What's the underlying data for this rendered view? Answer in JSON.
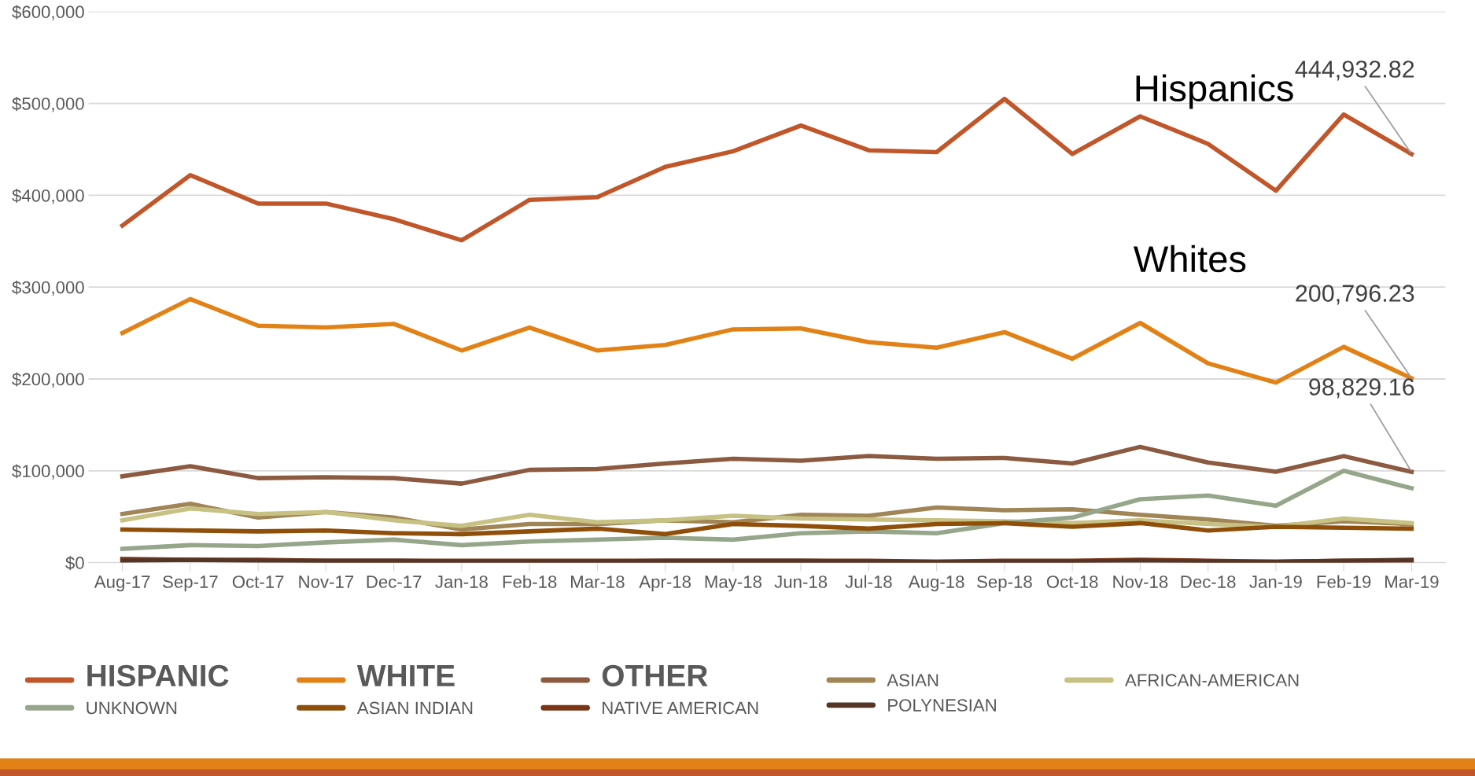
{
  "chart_data": {
    "type": "line",
    "categories": [
      "Aug-17",
      "Sep-17",
      "Oct-17",
      "Nov-17",
      "Dec-17",
      "Jan-18",
      "Feb-18",
      "Mar-18",
      "Apr-18",
      "May-18",
      "Jun-18",
      "Jul-18",
      "Aug-18",
      "Sep-18",
      "Oct-18",
      "Nov-18",
      "Dec-18",
      "Jan-19",
      "Feb-19",
      "Mar-19"
    ],
    "series": [
      {
        "name": "HISPANIC",
        "color": "#c0562a",
        "values": [
          367000,
          422000,
          391000,
          391000,
          374000,
          351000,
          395000,
          398000,
          431000,
          448000,
          476000,
          449000,
          447000,
          505000,
          445000,
          486000,
          456000,
          405000,
          488000,
          444932.82
        ],
        "value_labels": [
          null,
          null,
          null,
          null,
          null,
          null,
          null,
          null,
          null,
          null,
          null,
          null,
          null,
          null,
          null,
          null,
          null,
          null,
          null,
          "444,932.82"
        ]
      },
      {
        "name": "WHITE",
        "color": "#e28216",
        "values": [
          250000,
          287000,
          258000,
          256000,
          260000,
          231000,
          256000,
          231000,
          237000,
          254000,
          255000,
          240000,
          234000,
          251000,
          222000,
          261000,
          217000,
          196000,
          235000,
          200796.23
        ],
        "value_labels": [
          null,
          null,
          null,
          null,
          null,
          null,
          null,
          null,
          null,
          null,
          null,
          null,
          null,
          null,
          null,
          null,
          null,
          null,
          null,
          "200,796.23"
        ]
      },
      {
        "name": "OTHER",
        "color": "#8b5a40",
        "values": [
          94000,
          105000,
          92000,
          93000,
          92000,
          86000,
          101000,
          102000,
          108000,
          113000,
          111000,
          116000,
          113000,
          114000,
          108000,
          126000,
          109000,
          99000,
          116000,
          98829.16
        ],
        "value_labels": [
          null,
          null,
          null,
          null,
          null,
          null,
          null,
          null,
          null,
          null,
          null,
          null,
          null,
          null,
          null,
          null,
          null,
          null,
          null,
          "98,829.16"
        ]
      },
      {
        "name": "ASIAN",
        "color": "#a08556",
        "values": [
          53000,
          64000,
          49000,
          55000,
          49000,
          36000,
          42000,
          42000,
          46000,
          44000,
          52000,
          51000,
          60000,
          57000,
          58000,
          52000,
          47000,
          40000,
          45000,
          42000
        ]
      },
      {
        "name": "AFRICAN-AMERICAN",
        "color": "#c7c184",
        "values": [
          46000,
          59000,
          53000,
          55000,
          46000,
          40000,
          52000,
          44000,
          46000,
          51000,
          48000,
          47000,
          46000,
          45000,
          43000,
          46000,
          42000,
          39000,
          48000,
          43000
        ]
      },
      {
        "name": "UNKNOWN",
        "color": "#95a68a",
        "values": [
          15000,
          19000,
          18000,
          22000,
          25000,
          19000,
          23000,
          25000,
          27000,
          25000,
          32000,
          34000,
          32000,
          43000,
          49000,
          69000,
          73000,
          62000,
          100000,
          81000
        ]
      },
      {
        "name": "ASIAN INDIAN",
        "color": "#8f4f0a",
        "values": [
          36000,
          35000,
          34000,
          35000,
          32000,
          31000,
          34000,
          37000,
          31000,
          42000,
          40000,
          37000,
          42000,
          43000,
          39000,
          43000,
          35000,
          39000,
          38000,
          37000
        ]
      },
      {
        "name": "NATIVE AMERICAN",
        "color": "#7a3516",
        "values": [
          4000,
          3000,
          3000,
          2000,
          2000,
          2000,
          2000,
          2000,
          2000,
          2000,
          2000,
          2000,
          1000,
          2000,
          2000,
          3000,
          2000,
          1000,
          2000,
          2000
        ]
      },
      {
        "name": "POLYNESIAN",
        "color": "#553626",
        "values": [
          2000,
          3000,
          2000,
          2000,
          2000,
          1000,
          1000,
          1000,
          2000,
          2000,
          2000,
          1000,
          1000,
          1000,
          1000,
          2000,
          1000,
          1000,
          2000,
          3000
        ]
      }
    ],
    "ylim": [
      0,
      600000
    ],
    "yticks": [
      {
        "value": 0,
        "label": "$0"
      },
      {
        "value": 100000,
        "label": "$100,000"
      },
      {
        "value": 200000,
        "label": "$200,000"
      },
      {
        "value": 300000,
        "label": "$300,000"
      },
      {
        "value": 400000,
        "label": "$400,000"
      },
      {
        "value": 500000,
        "label": "$500,000"
      },
      {
        "value": 600000,
        "label": "$600,000"
      }
    ],
    "grid": "y",
    "legend": "bottom",
    "marker": "none",
    "line_style": "solid",
    "annotations": [
      "Hispanics",
      "Whites"
    ]
  }
}
